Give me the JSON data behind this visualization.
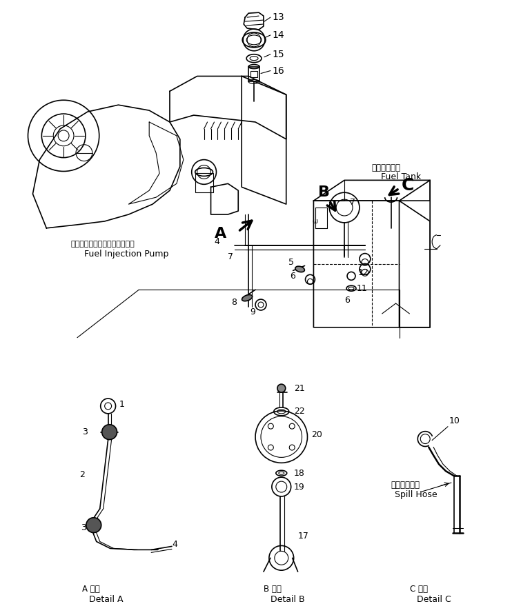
{
  "bg_color": "#ffffff",
  "line_color": "#000000",
  "figsize": [
    7.55,
    8.92
  ],
  "dpi": 100,
  "labels": {
    "fuel_tank_jp": "フエルタンク",
    "fuel_tank_en": "Fuel Tank",
    "fuel_injection_jp": "フエルインジェクションポンプ",
    "fuel_injection_en": "Fuel Injection Pump",
    "spill_hose_jp": "スピルホース",
    "spill_hose_en": "Spill Hose",
    "detail_a_jp": "A 詳細",
    "detail_a_en": "Detail A",
    "detail_b_jp": "B 詳細",
    "detail_b_en": "Detail B",
    "detail_c_jp": "C 詳細",
    "detail_c_en": "Detail C"
  }
}
